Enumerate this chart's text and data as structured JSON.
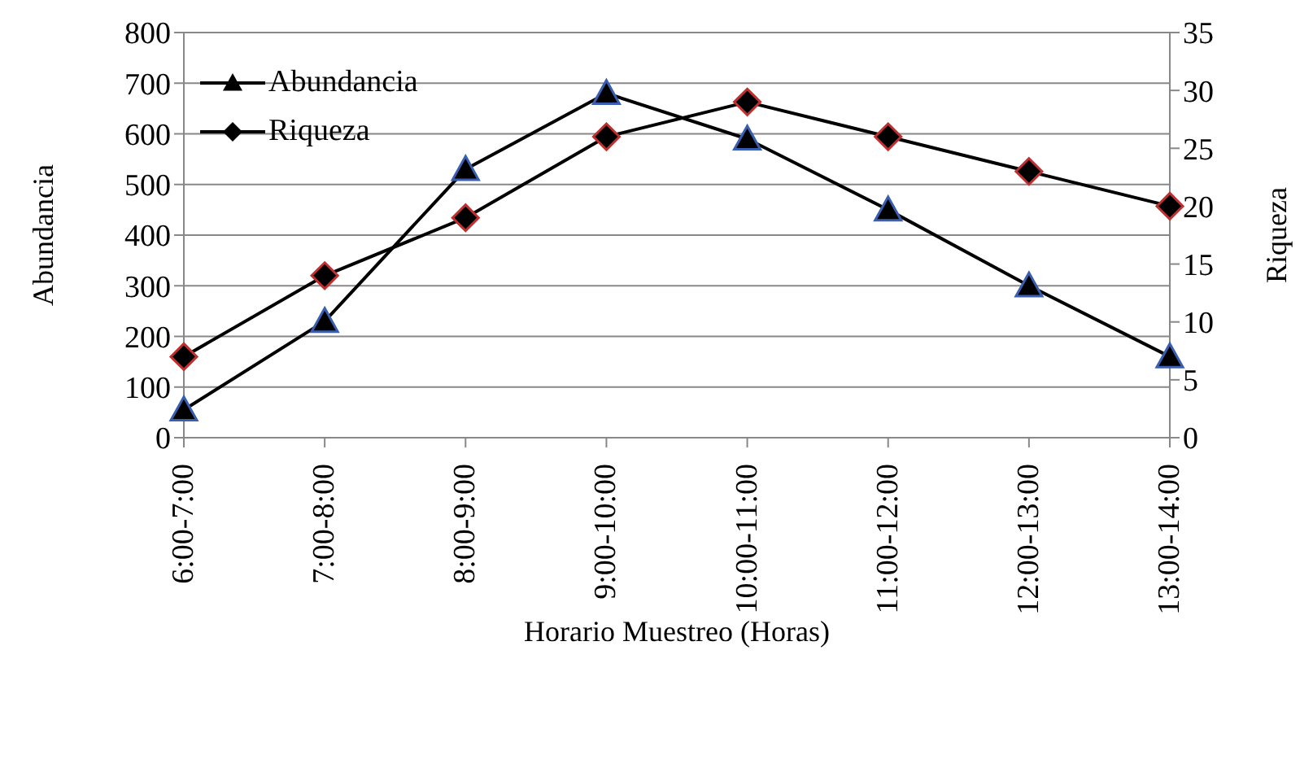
{
  "chart_data": {
    "type": "line",
    "xlabel": "Horario Muestreo (Horas)",
    "ylabel": "Abundancia",
    "y2label": "Riqueza",
    "categories": [
      "6:00-7:00",
      "7:00-8:00",
      "8:00-9:00",
      "9:00-10:00",
      "10:00-11:00",
      "11:00-12:00",
      "12:00-13:00",
      "13:00-14:00"
    ],
    "series": [
      {
        "name": "Abundancia",
        "color": "#000000",
        "marker": "triangle",
        "values": [
          55,
          230,
          530,
          680,
          590,
          450,
          300,
          160
        ]
      },
      {
        "name": "Riqueza",
        "color": "#000000",
        "marker": "diamond",
        "axis": "y2",
        "values": [
          7,
          14,
          19,
          26,
          29,
          26,
          23,
          20
        ]
      }
    ],
    "ylim": [
      0,
      800
    ],
    "yticks": [
      0,
      100,
      200,
      300,
      400,
      500,
      600,
      700,
      800
    ],
    "y2lim": [
      0,
      35
    ],
    "y2ticks": [
      0,
      5,
      10,
      15,
      20,
      25,
      30,
      35
    ],
    "grid": "y",
    "legend": "top left",
    "line_style": "solid"
  }
}
